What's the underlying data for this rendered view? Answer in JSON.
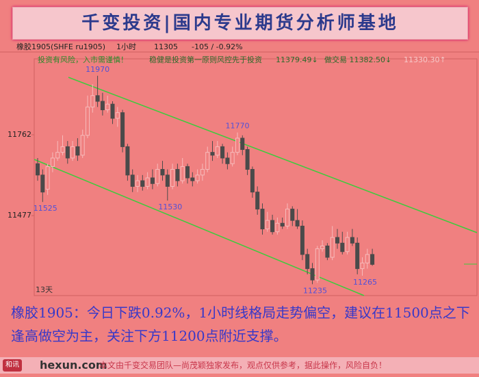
{
  "header": {
    "title": "千变投资|国内专业期货分析师基地"
  },
  "chart_data": {
    "type": "candlestick",
    "symbol": "橡胶1905(SHFE ru1905)",
    "period": "1小时",
    "last": 11305,
    "change_text": "-105 / -0.92%",
    "notice": "投资有风险，入市需谨慎！",
    "motto": "稳健是投资第一原则风控先于投资",
    "indicators": [
      "11379.49↓",
      "做交易 11382.50↓",
      "11330.30↑"
    ],
    "x_label": "13天",
    "up_color": "#f7bcbc",
    "down_color": "#4a4a4a",
    "ylim": [
      11195,
      12008
    ],
    "yticks": [
      11477,
      11762
    ],
    "open": [
      11660,
      11620,
      11570,
      11650,
      11680,
      11700,
      11720,
      11680,
      11720,
      11690,
      11760,
      11860,
      11900,
      11880,
      11850,
      11870,
      11820,
      11840,
      11720,
      11620,
      11580,
      11600,
      11580,
      11610,
      11590,
      11640,
      11620,
      11580,
      11640,
      11600,
      11650,
      11610,
      11600,
      11620,
      11640,
      11700,
      11690,
      11720,
      11680,
      11660,
      11700,
      11750,
      11710,
      11640,
      11560,
      11500,
      11430,
      11460,
      11420,
      11450,
      11440,
      11500,
      11460,
      11440,
      11340,
      11290,
      11250,
      11360,
      11370,
      11330,
      11400,
      11380,
      11350,
      11400,
      11380,
      11290,
      11310,
      11340
    ],
    "high": [
      11680,
      11640,
      11660,
      11700,
      11740,
      11760,
      11740,
      11740,
      11750,
      11780,
      11900,
      11940,
      11970,
      11910,
      11900,
      11880,
      11860,
      11850,
      11730,
      11640,
      11620,
      11620,
      11630,
      11640,
      11660,
      11670,
      11640,
      11660,
      11660,
      11680,
      11660,
      11630,
      11640,
      11660,
      11720,
      11740,
      11740,
      11730,
      11700,
      11720,
      11770,
      11760,
      11720,
      11650,
      11580,
      11520,
      11490,
      11480,
      11470,
      11470,
      11520,
      11510,
      11500,
      11460,
      11360,
      11310,
      11370,
      11390,
      11380,
      11440,
      11430,
      11420,
      11420,
      11430,
      11400,
      11330,
      11360,
      11360
    ],
    "low": [
      11600,
      11525,
      11550,
      11630,
      11670,
      11690,
      11660,
      11670,
      11670,
      11680,
      11750,
      11840,
      11860,
      11830,
      11840,
      11800,
      11790,
      11700,
      11600,
      11560,
      11560,
      11565,
      11570,
      11570,
      11580,
      11600,
      11530,
      11570,
      11580,
      11590,
      11590,
      11580,
      11590,
      11600,
      11630,
      11670,
      11680,
      11660,
      11640,
      11650,
      11690,
      11690,
      11620,
      11540,
      11480,
      11410,
      11420,
      11410,
      11410,
      11430,
      11430,
      11440,
      11430,
      11320,
      11270,
      11235,
      11240,
      11350,
      11320,
      11320,
      11360,
      11340,
      11340,
      11370,
      11270,
      11265,
      11290,
      11300
    ],
    "close": [
      11620,
      11560,
      11650,
      11680,
      11700,
      11720,
      11680,
      11720,
      11690,
      11760,
      11860,
      11900,
      11880,
      11850,
      11870,
      11820,
      11840,
      11720,
      11620,
      11580,
      11600,
      11580,
      11610,
      11590,
      11640,
      11620,
      11580,
      11640,
      11600,
      11650,
      11610,
      11600,
      11620,
      11640,
      11700,
      11690,
      11720,
      11680,
      11660,
      11700,
      11750,
      11710,
      11640,
      11560,
      11500,
      11430,
      11460,
      11420,
      11450,
      11440,
      11500,
      11460,
      11440,
      11340,
      11290,
      11250,
      11360,
      11370,
      11330,
      11400,
      11380,
      11350,
      11400,
      11380,
      11290,
      11310,
      11340,
      11305
    ],
    "annotations": [
      11970,
      11770,
      11525,
      11530,
      11235,
      11265
    ]
  },
  "commentary": "橡胶1905：今日下跌0.92%，1小时线格局走势偏空，建议在11500点之下逢高做空为主，关注下方11200点附近支撑。",
  "footer": {
    "logo": "和讯",
    "watermark": "hexun.com",
    "disclaimer": "本文由千变交易团队—尚茂颖独家发布，观点仅供参考，据此操作，风险自负！"
  }
}
